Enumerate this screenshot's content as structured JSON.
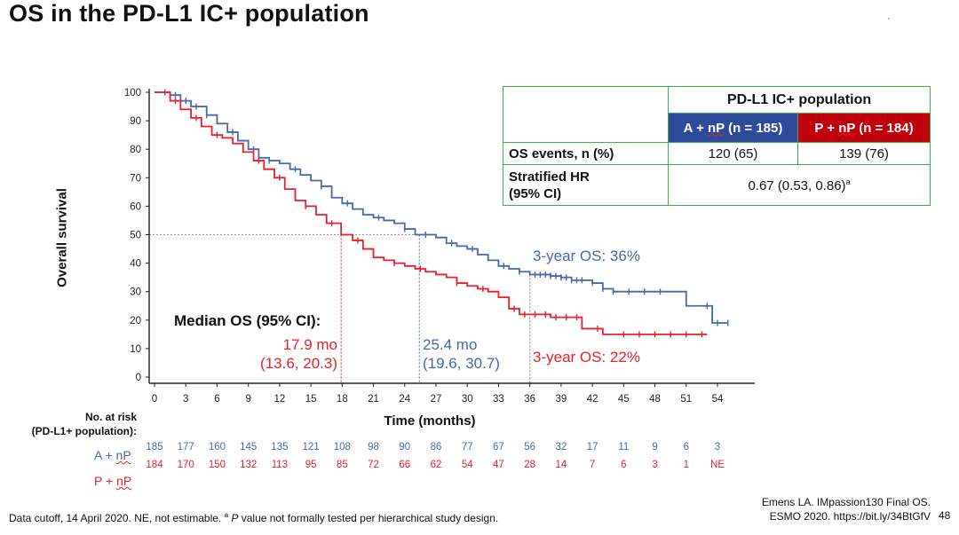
{
  "slide": {
    "title": "OS in the PD-L1 IC+ population",
    "footer_note": "Data cutoff, 14 April 2020. NE, not estimable. ",
    "footer_sup": "a",
    "footer_p": "P",
    "footer_rest": " value not formally tested per hierarchical study design.",
    "citation_line1": "Emens LA. IMpassion130 Final OS.",
    "citation_line2": "ESMO 2020. https://bit.ly/34BtGfV",
    "page_number": "48"
  },
  "chart_data": {
    "type": "line",
    "xlabel": "Time (months)",
    "ylabel": "Overall survival",
    "xlim": [
      0,
      54
    ],
    "ylim": [
      0,
      100
    ],
    "x_ticks": [
      0,
      3,
      6,
      9,
      12,
      15,
      18,
      21,
      24,
      27,
      30,
      33,
      36,
      39,
      42,
      45,
      48,
      51,
      54
    ],
    "y_ticks": [
      0,
      10,
      20,
      30,
      40,
      50,
      60,
      70,
      80,
      90,
      100
    ],
    "colors": {
      "blue": "#4a66ad",
      "red": "#e8202a"
    },
    "series": [
      {
        "name": "A + nP",
        "color": "#4a66ad",
        "points": [
          [
            0,
            100
          ],
          [
            1.5,
            99
          ],
          [
            2.5,
            97
          ],
          [
            3.5,
            95
          ],
          [
            5,
            92
          ],
          [
            6,
            89
          ],
          [
            7,
            86
          ],
          [
            8,
            83
          ],
          [
            9,
            80
          ],
          [
            10,
            77
          ],
          [
            11,
            76
          ],
          [
            12,
            75
          ],
          [
            13,
            73
          ],
          [
            14,
            71
          ],
          [
            15,
            69
          ],
          [
            16,
            67
          ],
          [
            17,
            63
          ],
          [
            18,
            61
          ],
          [
            19,
            59
          ],
          [
            20,
            57
          ],
          [
            21,
            56
          ],
          [
            22,
            55
          ],
          [
            23,
            54
          ],
          [
            24,
            52
          ],
          [
            25,
            50
          ],
          [
            26,
            50
          ],
          [
            27,
            49
          ],
          [
            28,
            47
          ],
          [
            29,
            46
          ],
          [
            30,
            45
          ],
          [
            31,
            43
          ],
          [
            32,
            41
          ],
          [
            33,
            39
          ],
          [
            34,
            38
          ],
          [
            35,
            37
          ],
          [
            36,
            36
          ],
          [
            37,
            36
          ],
          [
            38,
            35.5
          ],
          [
            39,
            35
          ],
          [
            40,
            34
          ],
          [
            41,
            34
          ],
          [
            42,
            33
          ],
          [
            43,
            31
          ],
          [
            44,
            30
          ],
          [
            45,
            30
          ],
          [
            48,
            30
          ],
          [
            50,
            30
          ],
          [
            51,
            25
          ],
          [
            53,
            25
          ],
          [
            53.5,
            19
          ],
          [
            55,
            19
          ]
        ],
        "censor_x": [
          1,
          2,
          3,
          4,
          5,
          7.5,
          9.5,
          11,
          13.5,
          16,
          18.5,
          21.5,
          24,
          26,
          28.5,
          30.5,
          33.5,
          35,
          36.5,
          37,
          37.5,
          38,
          38.5,
          39,
          39.5,
          40,
          40.5,
          41,
          42,
          43,
          44,
          45.5,
          47,
          48.5,
          53,
          54,
          55
        ]
      },
      {
        "name": "P + nP",
        "color": "#e8202a",
        "points": [
          [
            0,
            100
          ],
          [
            1.5,
            97
          ],
          [
            2.5,
            94
          ],
          [
            3.5,
            91
          ],
          [
            4.5,
            88
          ],
          [
            5.5,
            85
          ],
          [
            6.5,
            84
          ],
          [
            7.5,
            82
          ],
          [
            8.5,
            79
          ],
          [
            9.5,
            76
          ],
          [
            10.5,
            73
          ],
          [
            11.5,
            70
          ],
          [
            12.5,
            66
          ],
          [
            13.5,
            62
          ],
          [
            14.5,
            60
          ],
          [
            15.5,
            57
          ],
          [
            16.5,
            54
          ],
          [
            17.9,
            50
          ],
          [
            19,
            48
          ],
          [
            20,
            45
          ],
          [
            21,
            42
          ],
          [
            22,
            41
          ],
          [
            23,
            40
          ],
          [
            24,
            39
          ],
          [
            25,
            38
          ],
          [
            26,
            37
          ],
          [
            27,
            36
          ],
          [
            28,
            35
          ],
          [
            29,
            33
          ],
          [
            30,
            32
          ],
          [
            31,
            31
          ],
          [
            32,
            30
          ],
          [
            33,
            28
          ],
          [
            34,
            24
          ],
          [
            35,
            22
          ],
          [
            36,
            22
          ],
          [
            38,
            21
          ],
          [
            40,
            21
          ],
          [
            41,
            17
          ],
          [
            42,
            17
          ],
          [
            43,
            15
          ],
          [
            46,
            15
          ],
          [
            53,
            15
          ]
        ],
        "censor_x": [
          2,
          4,
          6,
          10,
          12,
          14.5,
          17,
          19.5,
          23,
          25.5,
          29,
          31.5,
          34.5,
          35.5,
          36.5,
          37.5,
          38.5,
          39.5,
          40.5,
          42.5,
          45,
          46.5,
          48,
          49.5,
          51,
          52.5
        ]
      }
    ],
    "reference_lines": {
      "median_y": 50,
      "red_median_x": 17.9,
      "blue_median_x": 25.4,
      "three_year_x": 36
    },
    "annotations": {
      "median_header": "Median OS (95% CI):",
      "red_median": "17.9 mo",
      "red_ci": "(13.6, 20.3)",
      "blue_median": "25.4 mo",
      "blue_ci": "(19.6, 30.7)",
      "blue_3yr": "3-year OS: 36%",
      "red_3yr": "3-year OS: 22%"
    }
  },
  "risk_table": {
    "header_line1": "No. at risk",
    "header_line2": "(PD-L1+ population):",
    "arm1_label_a": "A + ",
    "arm1_label_b": "nP",
    "arm2_label_a": "P + ",
    "arm2_label_b": "nP",
    "arm1": [
      "185",
      "177",
      "160",
      "145",
      "135",
      "121",
      "108",
      "98",
      "90",
      "86",
      "77",
      "67",
      "56",
      "32",
      "17",
      "11",
      "9",
      "6",
      "3"
    ],
    "arm2": [
      "184",
      "170",
      "150",
      "132",
      "113",
      "95",
      "85",
      "72",
      "66",
      "62",
      "54",
      "47",
      "28",
      "14",
      "7",
      "6",
      "3",
      "1",
      "NE"
    ]
  },
  "summary_table": {
    "population_header": "PD-L1 IC+ population",
    "arm1_header_a": "A + ",
    "arm1_header_b": "nP",
    "arm1_header_c": " (n = 185)",
    "arm2_header_a": "P + ",
    "arm2_header_b": "nP",
    "arm2_header_c": " (n = 184)",
    "row1_label": "OS events, n (%)",
    "row1_arm1": "120 (65)",
    "row1_arm2": "139 (76)",
    "row2_label_line1": "Stratified HR",
    "row2_label_line2": "(95% CI)",
    "row2_value": "0.67 (0.53, 0.86)",
    "row2_sup": "a"
  }
}
